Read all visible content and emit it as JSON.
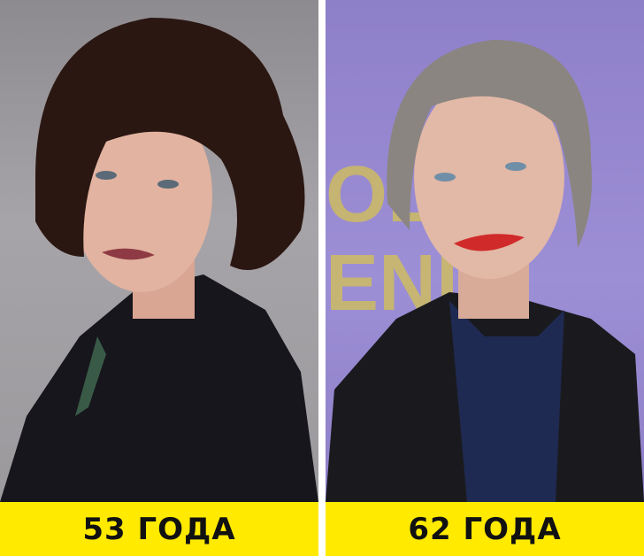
{
  "panels": [
    {
      "caption": "53 ГОДА",
      "background_color": "#9c9a9e"
    },
    {
      "caption": "62 ГОДА",
      "background_color": "#9486d0"
    }
  ],
  "colors": {
    "caption_bar": "#ffea00",
    "caption_text": "#111111"
  }
}
